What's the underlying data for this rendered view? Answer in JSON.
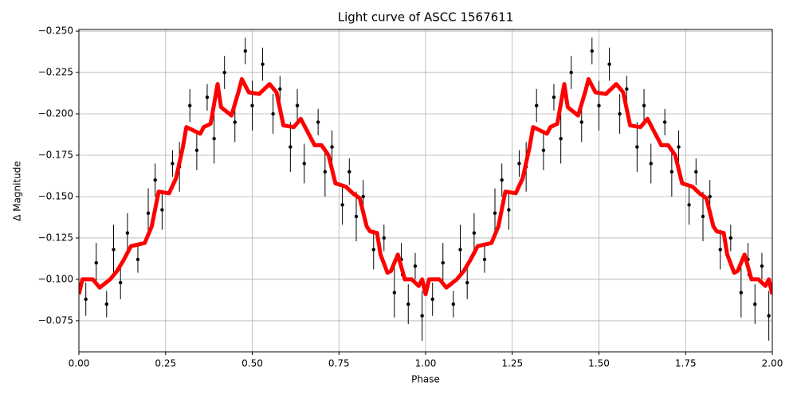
{
  "chart_data": {
    "type": "scatter",
    "title": "Light curve of ASCC 1567611",
    "xlabel": "Phase",
    "ylabel": "Δ Magnitude",
    "xlim": [
      0,
      2
    ],
    "ylim": [
      -0.0562,
      -0.251
    ],
    "grid": true,
    "xticks": [
      {
        "value": 0,
        "label": "0.00"
      },
      {
        "value": 0.25,
        "label": "0.25"
      },
      {
        "value": 0.5,
        "label": "0.50"
      },
      {
        "value": 0.75,
        "label": "0.75"
      },
      {
        "value": 1,
        "label": "1.00"
      },
      {
        "value": 1.25,
        "label": "1.25"
      },
      {
        "value": 1.5,
        "label": "1.50"
      },
      {
        "value": 1.75,
        "label": "1.75"
      },
      {
        "value": 2,
        "label": "2.00"
      }
    ],
    "yticks": [
      {
        "value": -0.25,
        "label": "−0.250"
      },
      {
        "value": -0.225,
        "label": "−0.225"
      },
      {
        "value": -0.2,
        "label": "−0.200"
      },
      {
        "value": -0.175,
        "label": "−0.175"
      },
      {
        "value": -0.15,
        "label": "−0.150"
      },
      {
        "value": -0.125,
        "label": "−0.125"
      },
      {
        "value": -0.1,
        "label": "−0.100"
      },
      {
        "value": -0.075,
        "label": "−0.075"
      }
    ],
    "series": [
      {
        "type": "errorbar",
        "color": "#000000",
        "x": [
          0.02,
          0.05,
          0.08,
          0.1,
          0.12,
          0.14,
          0.17,
          0.2,
          0.22,
          0.24,
          0.27,
          0.29,
          0.32,
          0.34,
          0.37,
          0.39,
          0.42,
          0.45,
          0.48,
          0.5,
          0.53,
          0.56,
          0.58,
          0.61,
          0.63,
          0.65,
          0.69,
          0.71,
          0.73,
          0.76,
          0.78,
          0.8,
          0.82,
          0.85,
          0.88,
          0.91,
          0.93,
          0.95,
          0.97,
          0.99,
          1.02,
          1.05,
          1.08,
          1.1,
          1.12,
          1.14,
          1.17,
          1.2,
          1.22,
          1.24,
          1.27,
          1.29,
          1.32,
          1.34,
          1.37,
          1.39,
          1.42,
          1.45,
          1.48,
          1.5,
          1.53,
          1.56,
          1.58,
          1.61,
          1.63,
          1.65,
          1.69,
          1.71,
          1.73,
          1.76,
          1.78,
          1.8,
          1.82,
          1.85,
          1.88,
          1.91,
          1.93,
          1.95,
          1.97,
          1.99
        ],
        "values": [
          -0.088,
          -0.11,
          -0.085,
          -0.118,
          -0.098,
          -0.128,
          -0.112,
          -0.14,
          -0.16,
          -0.142,
          -0.17,
          -0.168,
          -0.205,
          -0.178,
          -0.21,
          -0.185,
          -0.225,
          -0.195,
          -0.238,
          -0.205,
          -0.23,
          -0.2,
          -0.215,
          -0.18,
          -0.205,
          -0.17,
          -0.195,
          -0.165,
          -0.18,
          -0.145,
          -0.165,
          -0.138,
          -0.15,
          -0.118,
          -0.125,
          -0.092,
          -0.112,
          -0.085,
          -0.108,
          -0.078,
          -0.088,
          -0.11,
          -0.085,
          -0.118,
          -0.098,
          -0.128,
          -0.112,
          -0.14,
          -0.16,
          -0.142,
          -0.17,
          -0.168,
          -0.205,
          -0.178,
          -0.21,
          -0.185,
          -0.225,
          -0.195,
          -0.238,
          -0.205,
          -0.23,
          -0.2,
          -0.215,
          -0.18,
          -0.205,
          -0.17,
          -0.195,
          -0.165,
          -0.18,
          -0.145,
          -0.165,
          -0.138,
          -0.15,
          -0.118,
          -0.125,
          -0.092,
          -0.112,
          -0.085,
          -0.108,
          -0.078
        ],
        "errors": [
          0.01,
          0.012,
          0.008,
          0.015,
          0.01,
          0.012,
          0.008,
          0.015,
          0.01,
          0.012,
          0.008,
          0.015,
          0.01,
          0.012,
          0.008,
          0.015,
          0.01,
          0.012,
          0.008,
          0.015,
          0.01,
          0.012,
          0.008,
          0.015,
          0.01,
          0.012,
          0.008,
          0.015,
          0.01,
          0.012,
          0.008,
          0.015,
          0.01,
          0.012,
          0.008,
          0.015,
          0.01,
          0.012,
          0.008,
          0.015,
          0.01,
          0.012,
          0.008,
          0.015,
          0.01,
          0.012,
          0.008,
          0.015,
          0.01,
          0.012,
          0.008,
          0.015,
          0.01,
          0.012,
          0.008,
          0.015,
          0.01,
          0.012,
          0.008,
          0.015,
          0.01,
          0.012,
          0.008,
          0.015,
          0.01,
          0.012,
          0.008,
          0.015,
          0.01,
          0.012,
          0.008,
          0.015,
          0.01,
          0.012,
          0.008,
          0.015,
          0.01,
          0.012,
          0.008,
          0.015
        ]
      },
      {
        "type": "line",
        "color": "#ff0000",
        "x": [
          0,
          0.01,
          0.04,
          0.06,
          0.09,
          0.11,
          0.13,
          0.15,
          0.19,
          0.21,
          0.23,
          0.26,
          0.28,
          0.3,
          0.31,
          0.35,
          0.36,
          0.38,
          0.4,
          0.41,
          0.44,
          0.46,
          0.47,
          0.49,
          0.52,
          0.55,
          0.57,
          0.59,
          0.62,
          0.64,
          0.66,
          0.68,
          0.7,
          0.72,
          0.74,
          0.77,
          0.79,
          0.81,
          0.83,
          0.84,
          0.86,
          0.87,
          0.89,
          0.9,
          0.92,
          0.94,
          0.96,
          0.98,
          0.99,
          1.0,
          1.01,
          1.04,
          1.06,
          1.09,
          1.11,
          1.13,
          1.15,
          1.19,
          1.21,
          1.23,
          1.26,
          1.28,
          1.3,
          1.31,
          1.35,
          1.36,
          1.38,
          1.4,
          1.41,
          1.44,
          1.46,
          1.47,
          1.49,
          1.52,
          1.55,
          1.57,
          1.59,
          1.62,
          1.64,
          1.66,
          1.68,
          1.7,
          1.72,
          1.74,
          1.77,
          1.79,
          1.81,
          1.83,
          1.84,
          1.86,
          1.87,
          1.89,
          1.9,
          1.92,
          1.94,
          1.96,
          1.98,
          1.99,
          2.0
        ],
        "values": [
          -0.091,
          -0.1,
          -0.1,
          -0.095,
          -0.1,
          -0.105,
          -0.112,
          -0.12,
          -0.122,
          -0.132,
          -0.153,
          -0.152,
          -0.161,
          -0.18,
          -0.192,
          -0.188,
          -0.192,
          -0.194,
          -0.218,
          -0.204,
          -0.199,
          -0.213,
          -0.221,
          -0.213,
          -0.212,
          -0.218,
          -0.213,
          -0.193,
          -0.192,
          -0.197,
          -0.189,
          -0.181,
          -0.181,
          -0.175,
          -0.158,
          -0.156,
          -0.152,
          -0.149,
          -0.132,
          -0.129,
          -0.128,
          -0.115,
          -0.104,
          -0.105,
          -0.115,
          -0.1,
          -0.1,
          -0.096,
          -0.1,
          -0.091,
          -0.1,
          -0.1,
          -0.095,
          -0.1,
          -0.105,
          -0.112,
          -0.12,
          -0.122,
          -0.132,
          -0.153,
          -0.152,
          -0.161,
          -0.18,
          -0.192,
          -0.188,
          -0.192,
          -0.194,
          -0.218,
          -0.204,
          -0.199,
          -0.213,
          -0.221,
          -0.213,
          -0.212,
          -0.218,
          -0.213,
          -0.193,
          -0.192,
          -0.197,
          -0.189,
          -0.181,
          -0.181,
          -0.175,
          -0.158,
          -0.156,
          -0.152,
          -0.149,
          -0.132,
          -0.129,
          -0.128,
          -0.115,
          -0.104,
          -0.105,
          -0.115,
          -0.1,
          -0.1,
          -0.096,
          -0.1,
          -0.091
        ]
      }
    ]
  }
}
